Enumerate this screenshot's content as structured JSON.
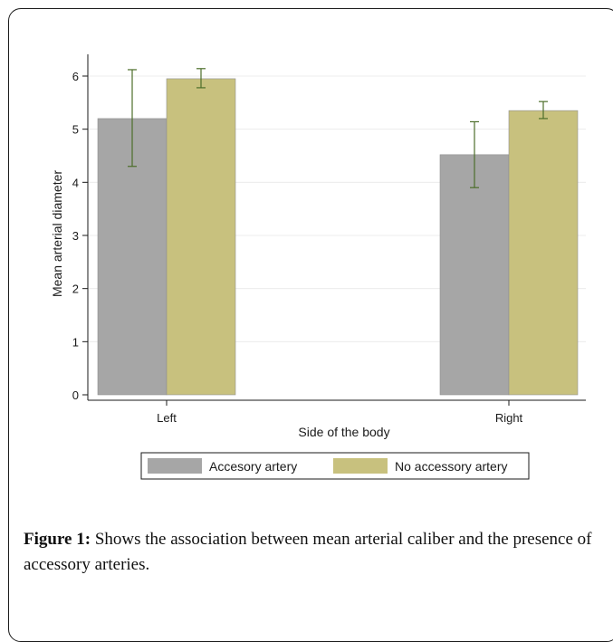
{
  "chart_data": {
    "type": "bar",
    "categories": [
      "Left",
      "Right"
    ],
    "series": [
      {
        "name": "Accesory artery",
        "color": "#a6a6a6",
        "values": [
          5.2,
          4.52
        ],
        "ci_low": [
          4.3,
          3.9
        ],
        "ci_high": [
          6.12,
          5.14
        ]
      },
      {
        "name": "No accessory artery",
        "color": "#c8c17e",
        "values": [
          5.95,
          5.35
        ],
        "ci_low": [
          5.78,
          5.2
        ],
        "ci_high": [
          6.14,
          5.52
        ]
      }
    ],
    "xlabel": "Side of the body",
    "ylabel": "Mean arterial diameter",
    "ylim": [
      0,
      6
    ],
    "yticks": [
      0,
      1,
      2,
      3,
      4,
      5,
      6
    ],
    "grid": true,
    "legend": "bottom",
    "error_bar_color": "#4c6e2a"
  },
  "caption": {
    "label": "Figure 1:",
    "text": " Shows the association between mean arterial caliber and the presence of accessory arteries."
  }
}
